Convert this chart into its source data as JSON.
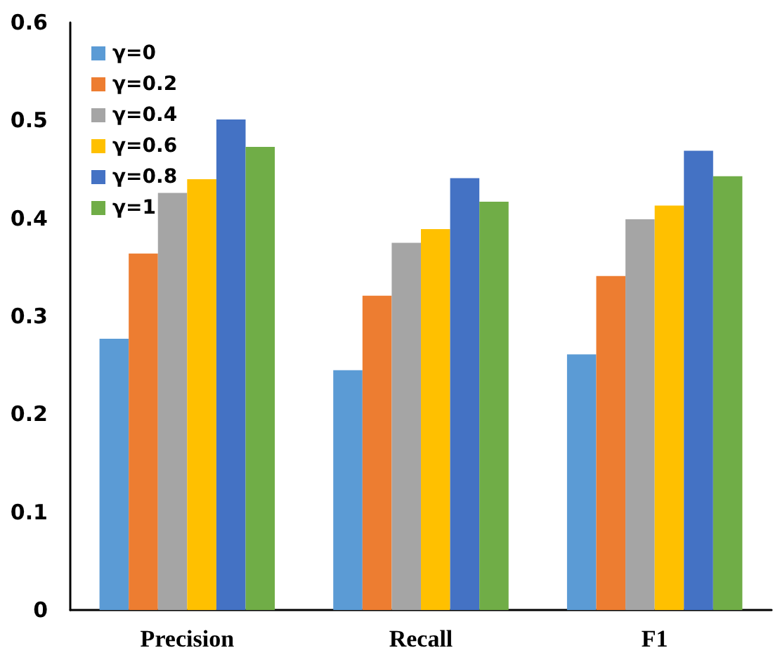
{
  "chart_data": {
    "type": "bar",
    "categories": [
      "Precision",
      "Recall",
      "F1"
    ],
    "series": [
      {
        "name": "γ=0",
        "color": "#5b9bd5",
        "values": [
          0.277,
          0.245,
          0.261
        ]
      },
      {
        "name": "γ=0.2",
        "color": "#ed7d31",
        "values": [
          0.364,
          0.321,
          0.341
        ]
      },
      {
        "name": "γ=0.4",
        "color": "#a5a5a5",
        "values": [
          0.426,
          0.375,
          0.399
        ]
      },
      {
        "name": "γ=0.6",
        "color": "#ffc000",
        "values": [
          0.44,
          0.389,
          0.413
        ]
      },
      {
        "name": "γ=0.8",
        "color": "#4472c4",
        "values": [
          0.501,
          0.441,
          0.469
        ]
      },
      {
        "name": "γ=1",
        "color": "#70ad47",
        "values": [
          0.473,
          0.417,
          0.443
        ]
      }
    ],
    "ylim": [
      0,
      0.6
    ],
    "yticks": [
      0,
      0.1,
      0.2,
      0.3,
      0.4,
      0.5,
      0.6
    ],
    "grid": false,
    "legend": "top left"
  }
}
